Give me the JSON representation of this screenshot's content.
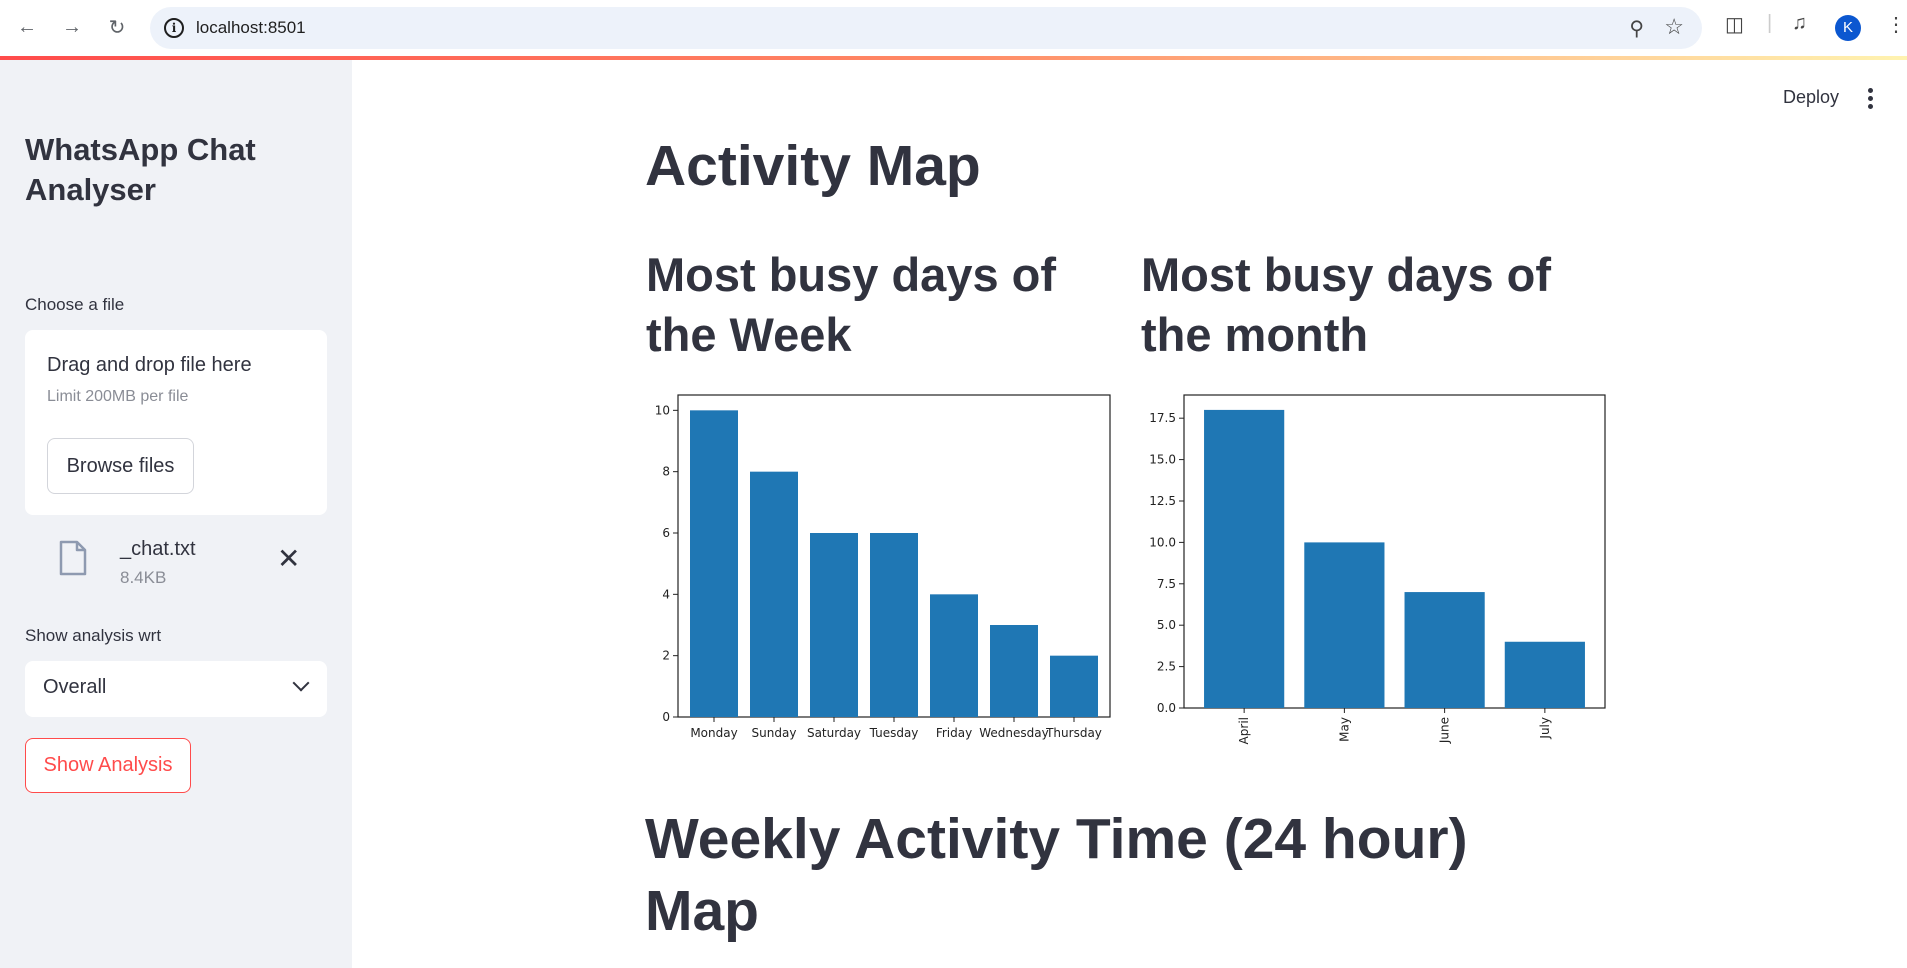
{
  "browser": {
    "url": "localhost:8501",
    "profile_initial": "K"
  },
  "sidebar": {
    "title": "WhatsApp Chat Analyser",
    "file_label": "Choose a file",
    "drag_text": "Drag and drop file here",
    "limit_text": "Limit 200MB per file",
    "browse_label": "Browse files",
    "file_name": "_chat.txt",
    "file_size": "8.4KB",
    "analysis_label": "Show analysis wrt",
    "selected_option": "Overall",
    "show_button": "Show Analysis"
  },
  "header": {
    "deploy_label": "Deploy"
  },
  "main": {
    "activity_title": "Activity Map",
    "week_title": "Most busy days of the Week",
    "month_title": "Most busy days of the month",
    "weekly_title": "Weekly Activity Time (24 hour) Map"
  },
  "colors": {
    "bar": "#1f77b4",
    "accent": "#ff4b4b"
  },
  "chart_data": [
    {
      "type": "bar",
      "categories": [
        "Monday",
        "Sunday",
        "Saturday",
        "Tuesday",
        "Friday",
        "Wednesday",
        "Thursday"
      ],
      "values": [
        10,
        8,
        6,
        6,
        4,
        3,
        2
      ],
      "ylim": [
        0,
        10.5
      ],
      "yticks": [
        0,
        2,
        4,
        6,
        8,
        10
      ],
      "ytick_labels": [
        "0",
        "2",
        "4",
        "6",
        "8",
        "10"
      ],
      "xlabel_rotation": 0
    },
    {
      "type": "bar",
      "categories": [
        "April",
        "May",
        "June",
        "July"
      ],
      "values": [
        18,
        10,
        7,
        4
      ],
      "ylim": [
        0,
        18.9
      ],
      "yticks": [
        0,
        2.5,
        5,
        7.5,
        10,
        12.5,
        15,
        17.5
      ],
      "ytick_labels": [
        "0.0",
        "2.5",
        "5.0",
        "7.5",
        "10.0",
        "12.5",
        "15.0",
        "17.5"
      ],
      "xlabel_rotation": -90
    }
  ]
}
